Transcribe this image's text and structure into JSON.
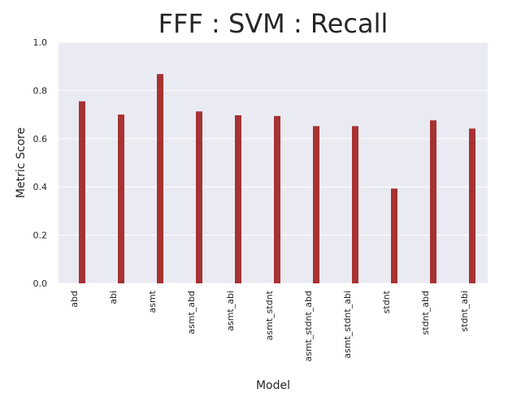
{
  "chart_data": {
    "type": "bar",
    "title": "FFF : SVM : Recall",
    "xlabel": "Model",
    "ylabel": "Metric Score",
    "ylim": [
      0,
      1.0
    ],
    "yticks": [
      "0.0",
      "0.2",
      "0.4",
      "0.6",
      "0.8",
      "1.0"
    ],
    "categories": [
      "abd",
      "abi",
      "asmt",
      "asmt_abd",
      "asmt_abi",
      "asmt_stdnt",
      "asmt_stdnt_abd",
      "asmt_stdnt_abi",
      "stdnt",
      "stdnt_abd",
      "stdnt_abi"
    ],
    "values": [
      0.755,
      0.7,
      0.868,
      0.713,
      0.697,
      0.694,
      0.652,
      0.652,
      0.393,
      0.676,
      0.642
    ],
    "grid": true,
    "bar_color": "#a63232",
    "background_color": "#eaeaf2"
  }
}
